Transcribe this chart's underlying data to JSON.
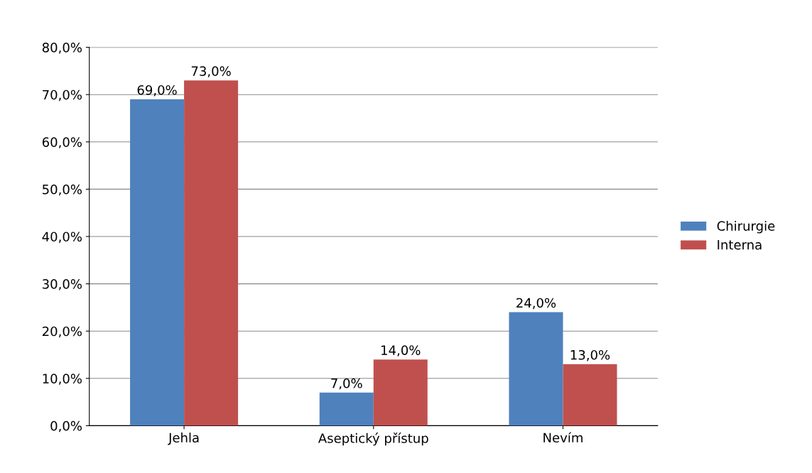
{
  "chart_data": {
    "type": "bar",
    "categories": [
      "Jehla",
      "Aseptický přístup",
      "Nevím"
    ],
    "series": [
      {
        "name": "Chirurgie",
        "color": "#4f81bd",
        "values": [
          69,
          7,
          24
        ],
        "value_labels": [
          "69,0%",
          "7,0%",
          "24,0%"
        ]
      },
      {
        "name": "Interna",
        "color": "#c0504d",
        "values": [
          73,
          14,
          13
        ],
        "value_labels": [
          "73,0%",
          "14,0%",
          "13,0%"
        ]
      }
    ],
    "ylim": [
      0,
      80
    ],
    "yticks": [
      {
        "value": 0,
        "label": "0,0%"
      },
      {
        "value": 10,
        "label": "10,0%"
      },
      {
        "value": 20,
        "label": "20,0%"
      },
      {
        "value": 30,
        "label": "30,0%"
      },
      {
        "value": 40,
        "label": "40,0%"
      },
      {
        "value": 50,
        "label": "50,0%"
      },
      {
        "value": 60,
        "label": "60,0%"
      },
      {
        "value": 70,
        "label": "70,0%"
      },
      {
        "value": 80,
        "label": "80,0%"
      }
    ],
    "grid": "y",
    "legend": "right"
  }
}
